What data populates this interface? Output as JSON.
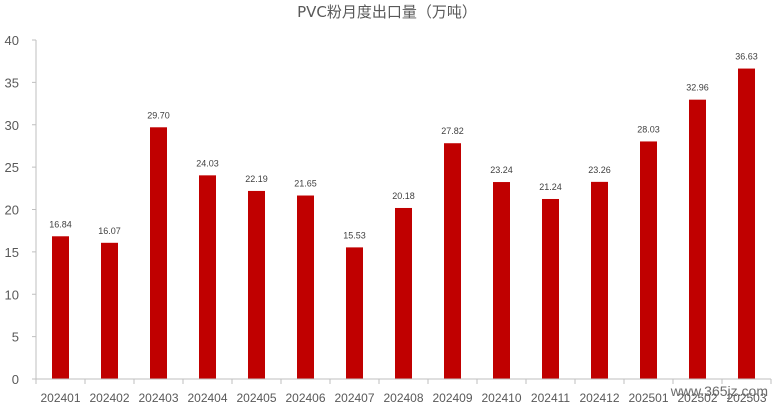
{
  "chart_data": {
    "type": "bar",
    "title": "PVC粉月度出口量（万吨）",
    "categories": [
      "202401",
      "202402",
      "202403",
      "202404",
      "202405",
      "202406",
      "202407",
      "202408",
      "202409",
      "202410",
      "202411",
      "202412",
      "202501",
      "202502",
      "202503"
    ],
    "values": [
      16.84,
      16.07,
      29.7,
      24.03,
      22.19,
      21.65,
      15.53,
      20.18,
      27.82,
      23.24,
      21.24,
      23.26,
      28.03,
      32.96,
      36.63
    ],
    "value_labels": [
      "16.84",
      "16.07",
      "29.70",
      "24.03",
      "22.19",
      "21.65",
      "15.53",
      "20.18",
      "27.82",
      "23.24",
      "21.24",
      "23.26",
      "28.03",
      "32.96",
      "36.63"
    ],
    "ylim": [
      0,
      40
    ],
    "yticks": [
      "0",
      "5",
      "10",
      "15",
      "20",
      "25",
      "30",
      "35",
      "40"
    ],
    "grid": false,
    "legend": "none",
    "bar_color": "#c00000"
  },
  "watermark": "www.365jz.com"
}
